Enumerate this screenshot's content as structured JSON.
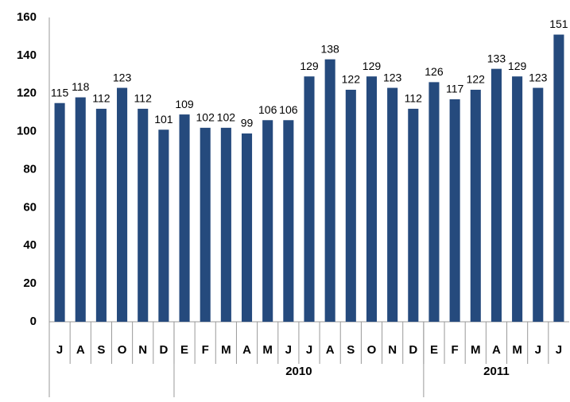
{
  "chart_data": {
    "type": "bar",
    "categories": [
      "J",
      "A",
      "S",
      "O",
      "N",
      "D",
      "E",
      "F",
      "M",
      "A",
      "M",
      "J",
      "J",
      "A",
      "S",
      "O",
      "N",
      "D",
      "E",
      "F",
      "M",
      "A",
      "M",
      "J",
      "J"
    ],
    "values": [
      115,
      118,
      112,
      123,
      112,
      101,
      109,
      102,
      102,
      99,
      106,
      106,
      129,
      138,
      122,
      129,
      123,
      112,
      126,
      117,
      122,
      133,
      129,
      123,
      151
    ],
    "groups": [
      {
        "label": null,
        "size": 6
      },
      {
        "label": "2010",
        "size": 12
      },
      {
        "label": "2011",
        "size": 7
      }
    ],
    "color": "#254a7d",
    "ylim": [
      0,
      160
    ],
    "yticks": [
      0,
      20,
      40,
      60,
      80,
      100,
      120,
      140,
      160
    ],
    "grid": false
  }
}
